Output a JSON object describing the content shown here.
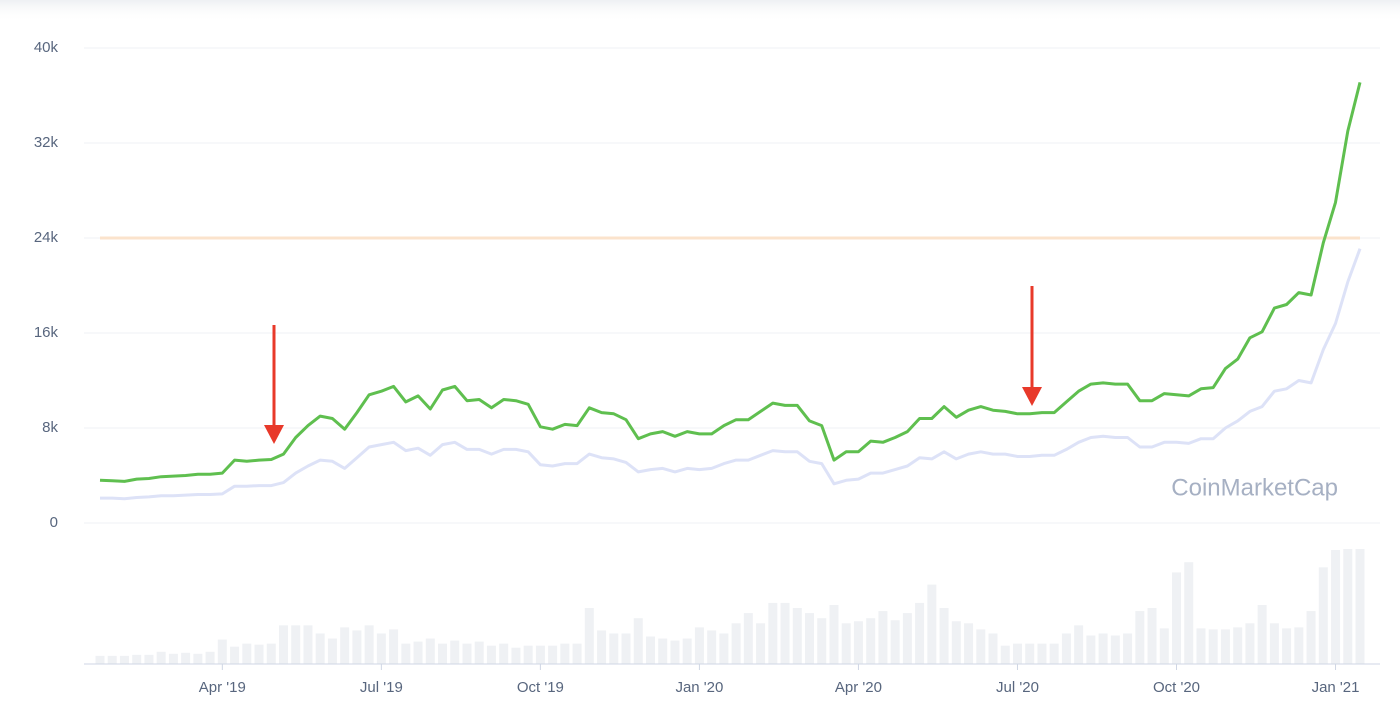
{
  "chart_data": {
    "type": "line",
    "watermark": "CoinMarketCap",
    "categories": [
      null,
      null,
      null,
      null,
      null,
      null,
      null,
      null,
      null,
      null,
      "Apr '19",
      null,
      null,
      null,
      null,
      null,
      null,
      null,
      null,
      null,
      null,
      null,
      null,
      "Jul '19",
      null,
      null,
      null,
      null,
      null,
      null,
      null,
      null,
      null,
      null,
      null,
      null,
      "Oct '19",
      null,
      null,
      null,
      null,
      null,
      null,
      null,
      null,
      null,
      null,
      null,
      null,
      "Jan '20",
      null,
      null,
      null,
      null,
      null,
      null,
      null,
      null,
      null,
      null,
      null,
      null,
      "Apr '20",
      null,
      null,
      null,
      null,
      null,
      null,
      null,
      null,
      null,
      null,
      null,
      null,
      "Jul '20",
      null,
      null,
      null,
      null,
      null,
      null,
      null,
      null,
      null,
      null,
      null,
      null,
      "Oct '20",
      null,
      null,
      null,
      null,
      null,
      null,
      null,
      null,
      null,
      null,
      null,
      null,
      "Jan '21",
      null,
      null
    ],
    "series": [
      {
        "color": "#5fbf4f",
        "values": [
          3600,
          3550,
          3500,
          3700,
          3750,
          3900,
          3950,
          4000,
          4100,
          4100,
          4200,
          5300,
          5200,
          5300,
          5350,
          5800,
          7200,
          8200,
          9000,
          8800,
          7900,
          9300,
          10800,
          11100,
          11500,
          10200,
          10700,
          9600,
          11200,
          11500,
          10300,
          10400,
          9700,
          10400,
          10300,
          10000,
          8100,
          7900,
          8300,
          8200,
          9700,
          9300,
          9200,
          8700,
          7100,
          7500,
          7700,
          7300,
          7700,
          7500,
          7500,
          8200,
          8700,
          8700,
          9400,
          10100,
          9900,
          9900,
          8600,
          8200,
          5300,
          6000,
          6000,
          6900,
          6800,
          7200,
          7700,
          8800,
          8800,
          9800,
          8900,
          9500,
          9800,
          9500,
          9400,
          9200,
          9200,
          9300,
          9300,
          10200,
          11100,
          11700,
          11800,
          11700,
          11700,
          10300,
          10300,
          10900,
          10800,
          10700,
          11300,
          11400,
          13000,
          13800,
          15600,
          16100,
          18100,
          18400,
          19400,
          19200,
          23600,
          27000,
          33000,
          37100
        ]
      },
      {
        "color": "#dde2f7",
        "values": [
          2100,
          2100,
          2050,
          2150,
          2200,
          2300,
          2300,
          2350,
          2400,
          2400,
          2450,
          3100,
          3100,
          3150,
          3150,
          3400,
          4200,
          4800,
          5300,
          5200,
          4600,
          5500,
          6400,
          6600,
          6800,
          6100,
          6300,
          5700,
          6600,
          6800,
          6200,
          6200,
          5800,
          6200,
          6200,
          6000,
          4900,
          4800,
          5000,
          5000,
          5800,
          5500,
          5400,
          5100,
          4300,
          4500,
          4600,
          4300,
          4600,
          4500,
          4600,
          5000,
          5300,
          5300,
          5700,
          6100,
          6000,
          6000,
          5200,
          5000,
          3300,
          3600,
          3700,
          4200,
          4200,
          4500,
          4800,
          5500,
          5400,
          6000,
          5400,
          5800,
          6000,
          5800,
          5800,
          5600,
          5600,
          5700,
          5700,
          6200,
          6800,
          7200,
          7300,
          7200,
          7200,
          6400,
          6400,
          6800,
          6800,
          6700,
          7100,
          7100,
          8000,
          8600,
          9400,
          9800,
          11100,
          11300,
          12000,
          11800,
          14600,
          16800,
          20300,
          23100
        ]
      }
    ],
    "volume": {
      "color": "#eff1f4",
      "values": [
        8,
        8,
        8,
        9,
        9,
        12,
        10,
        11,
        10,
        12,
        24,
        17,
        20,
        19,
        20,
        38,
        38,
        38,
        30,
        25,
        36,
        33,
        38,
        30,
        34,
        20,
        22,
        25,
        20,
        23,
        20,
        22,
        18,
        20,
        16,
        18,
        18,
        18,
        20,
        20,
        55,
        33,
        30,
        30,
        45,
        27,
        25,
        23,
        25,
        36,
        33,
        30,
        40,
        50,
        40,
        60,
        60,
        55,
        50,
        45,
        58,
        40,
        42,
        45,
        52,
        43,
        50,
        60,
        78,
        55,
        42,
        40,
        34,
        30,
        18,
        20,
        20,
        20,
        20,
        30,
        38,
        28,
        30,
        28,
        30,
        52,
        55,
        35,
        90,
        100,
        35,
        34,
        34,
        36,
        40,
        58,
        40,
        35,
        36,
        52,
        95,
        112,
        113,
        113
      ]
    },
    "reference_line": {
      "value": 24000,
      "color": "#fbe3cc"
    },
    "ylim": [
      0,
      40000
    ],
    "yticks": [
      {
        "value": 0,
        "label": "0"
      },
      {
        "value": 8000,
        "label": "8k"
      },
      {
        "value": 16000,
        "label": "16k"
      },
      {
        "value": 24000,
        "label": "24k"
      },
      {
        "value": 32000,
        "label": "32k"
      },
      {
        "value": 40000,
        "label": "40k"
      }
    ],
    "grid": true
  }
}
